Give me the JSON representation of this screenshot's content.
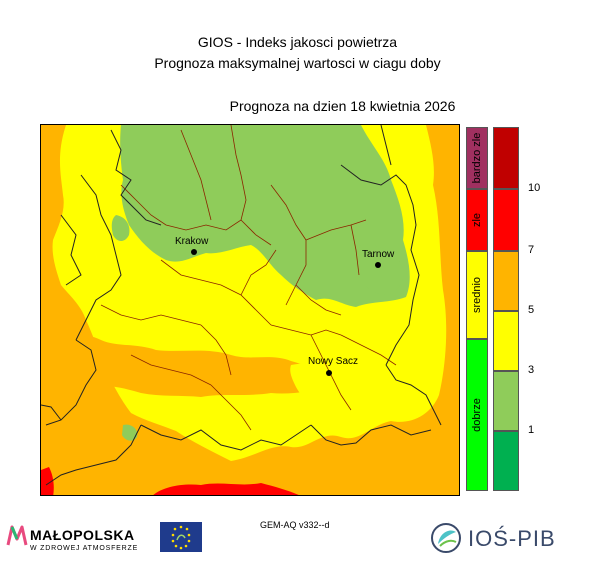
{
  "header": {
    "title_line1": "GIOS - Indeks jakosci powietrza",
    "title_line2": "Prognoza maksymalnej wartosci w ciagu doby",
    "forecast_date": "Prognoza na dzien  18 kwietnia 2026"
  },
  "map": {
    "cities": [
      {
        "name": "Krakow"
      },
      {
        "name": "Tarnow"
      },
      {
        "name": "Nowy Sacz"
      }
    ],
    "colors": {
      "dark_green": "#00b050",
      "light_green": "#8fcc5a",
      "yellow": "#ffff00",
      "orange": "#ffb400",
      "red": "#ff0000",
      "dark_red": "#b80000",
      "purple": "#a03060"
    }
  },
  "legend": {
    "categories": [
      {
        "label": "bardzo zle",
        "color": "#a03060"
      },
      {
        "label": "zle",
        "color": "#ff0000"
      },
      {
        "label": "srednio",
        "color": "#ffff00"
      },
      {
        "label": "dobrze",
        "color": "#00ff00"
      }
    ],
    "scale_colors": [
      "#c00000",
      "#ff0000",
      "#ffb400",
      "#ffff00",
      "#8fcc5a",
      "#00b050"
    ],
    "ticks": [
      "10",
      "7",
      "5",
      "3",
      "1"
    ]
  },
  "footer": {
    "model": "GEM-AQ v332--d",
    "malopolska_name": "MAŁOPOLSKA",
    "malopolska_sub": "W ZDROWEJ ATMOSFERZE",
    "ios_name": "IOŚ-PIB"
  }
}
